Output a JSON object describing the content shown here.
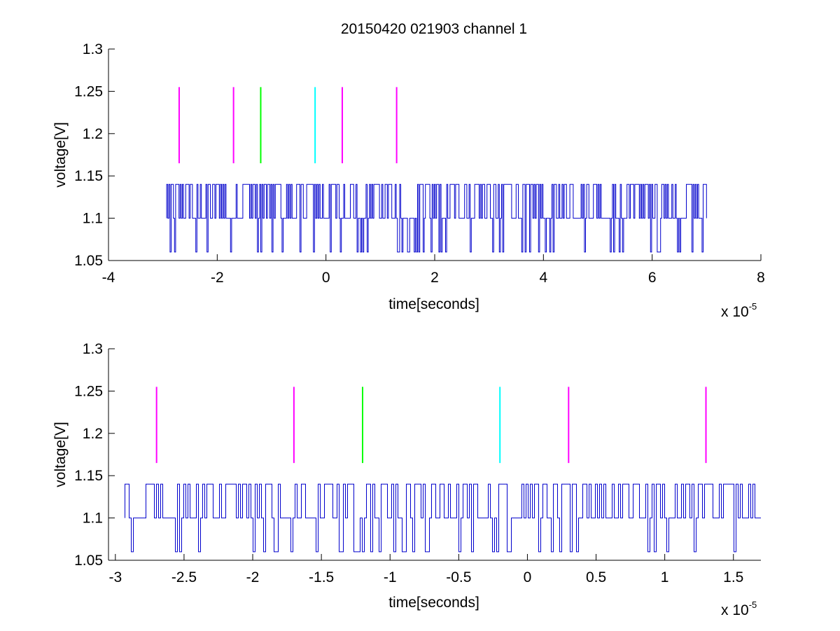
{
  "figure": {
    "title": "20150420 021903 channel 1"
  },
  "chart_data": [
    {
      "type": "line",
      "title": "20150420 021903 channel 1",
      "xlabel": "time[seconds]",
      "ylabel": "voltage[V]",
      "x_multiplier_label": "x 10",
      "x_multiplier_exponent": "-5",
      "xlim": [
        -4,
        8
      ],
      "ylim": [
        1.05,
        1.3
      ],
      "x_ticks": [
        "-4",
        "-2",
        "0",
        "2",
        "4",
        "6",
        "8"
      ],
      "y_ticks": [
        "1.05",
        "1.1",
        "1.15",
        "1.2",
        "1.25",
        "1.3"
      ],
      "grid": false,
      "signal": {
        "color": "#0000cc",
        "x_range": [
          -2.93,
          7.0
        ],
        "levels": [
          1.06,
          1.1,
          1.14
        ],
        "baseline": 1.1
      },
      "markers": [
        {
          "x": -2.7,
          "y0": 1.165,
          "y1": 1.255,
          "color": "#ff00ff"
        },
        {
          "x": -1.7,
          "y0": 1.165,
          "y1": 1.255,
          "color": "#ff00ff"
        },
        {
          "x": -1.2,
          "y0": 1.165,
          "y1": 1.255,
          "color": "#00ff00"
        },
        {
          "x": -0.2,
          "y0": 1.165,
          "y1": 1.255,
          "color": "#00ffff"
        },
        {
          "x": 0.3,
          "y0": 1.165,
          "y1": 1.255,
          "color": "#ff00ff"
        },
        {
          "x": 1.3,
          "y0": 1.165,
          "y1": 1.255,
          "color": "#ff00ff"
        }
      ]
    },
    {
      "type": "line",
      "title": "",
      "xlabel": "time[seconds]",
      "ylabel": "voltage[V]",
      "x_multiplier_label": "x 10",
      "x_multiplier_exponent": "-5",
      "xlim": [
        -3.05,
        1.7
      ],
      "ylim": [
        1.05,
        1.3
      ],
      "x_ticks": [
        "-3",
        "-2.5",
        "-2",
        "-1.5",
        "-1",
        "-0.5",
        "0",
        "0.5",
        "1",
        "1.5"
      ],
      "y_ticks": [
        "1.05",
        "1.1",
        "1.15",
        "1.2",
        "1.25",
        "1.3"
      ],
      "grid": false,
      "signal": {
        "color": "#0000cc",
        "x_range": [
          -2.93,
          1.7
        ],
        "levels": [
          1.06,
          1.1,
          1.14
        ],
        "baseline": 1.1
      },
      "markers": [
        {
          "x": -2.7,
          "y0": 1.165,
          "y1": 1.255,
          "color": "#ff00ff"
        },
        {
          "x": -1.7,
          "y0": 1.165,
          "y1": 1.255,
          "color": "#ff00ff"
        },
        {
          "x": -1.2,
          "y0": 1.165,
          "y1": 1.255,
          "color": "#00ff00"
        },
        {
          "x": -0.2,
          "y0": 1.165,
          "y1": 1.255,
          "color": "#00ffff"
        },
        {
          "x": 0.3,
          "y0": 1.165,
          "y1": 1.255,
          "color": "#ff00ff"
        },
        {
          "x": 1.3,
          "y0": 1.165,
          "y1": 1.255,
          "color": "#ff00ff"
        }
      ]
    }
  ]
}
